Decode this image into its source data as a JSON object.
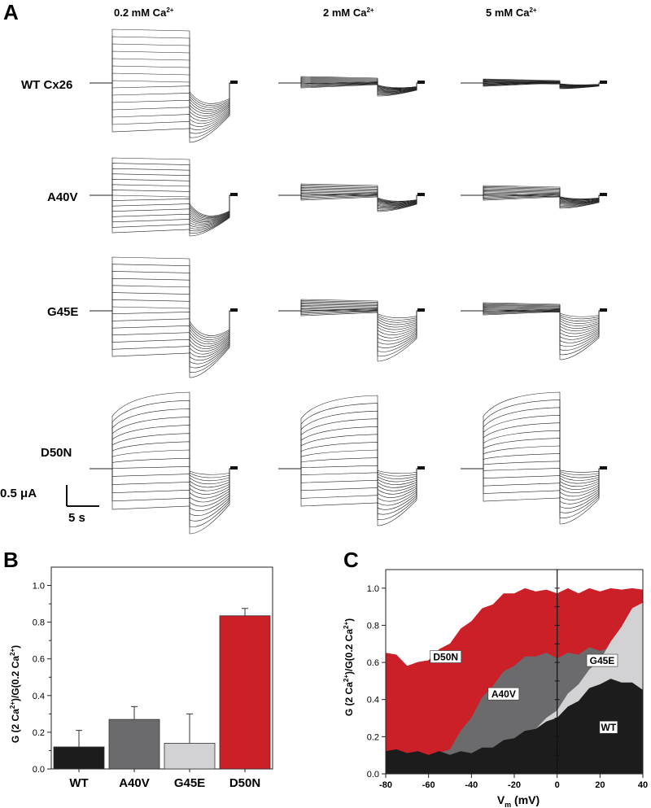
{
  "panels": {
    "a": "A",
    "b": "B",
    "c": "C"
  },
  "panel_a": {
    "conditions": [
      {
        "main": "0.2 mM Ca",
        "sup": "2+"
      },
      {
        "main": "2 mM Ca",
        "sup": "2+"
      },
      {
        "main": "5 mM Ca",
        "sup": "2+"
      }
    ],
    "rows": [
      "WT Cx26",
      "A40V",
      "G45E",
      "D50N"
    ],
    "scale_current": "0.5 μA",
    "scale_time": "5 s"
  },
  "colors": {
    "WT": "#1c1c1c",
    "A40V": "#6b6b6e",
    "G45E": "#d2d2d4",
    "D50N": "#cc2028"
  },
  "chart_data": [
    {
      "type": "bar",
      "panel": "B",
      "categories": [
        "WT",
        "A40V",
        "G45E",
        "D50N"
      ],
      "values": [
        0.12,
        0.27,
        0.14,
        0.835
      ],
      "errors": [
        0.09,
        0.07,
        0.16,
        0.04
      ],
      "ylabel_parts": [
        "G (2 Ca",
        "2+",
        ")/G(0.2 Ca",
        "2+",
        ")"
      ],
      "ylim": [
        0,
        1.0
      ],
      "yticks": [
        "0.0",
        "0.2",
        "0.4",
        "0.6",
        "0.8",
        "1.0"
      ]
    },
    {
      "type": "area",
      "panel": "C",
      "x": [
        -80,
        -75,
        -70,
        -65,
        -60,
        -55,
        -50,
        -45,
        -40,
        -35,
        -30,
        -25,
        -20,
        -15,
        -10,
        -5,
        0,
        5,
        10,
        15,
        20,
        25,
        30,
        35,
        40
      ],
      "series": [
        {
          "name": "D50N",
          "values": [
            0.66,
            0.63,
            0.59,
            0.59,
            0.62,
            0.66,
            0.71,
            0.77,
            0.83,
            0.88,
            0.92,
            0.96,
            0.98,
            0.99,
            0.99,
            0.98,
            0.98,
            0.99,
            0.98,
            0.99,
            0.99,
            1.0,
            1.0,
            1.0,
            1.0
          ]
        },
        {
          "name": "A40V",
          "values": [
            0.12,
            0.11,
            0.1,
            0.1,
            0.1,
            0.1,
            0.14,
            0.22,
            0.31,
            0.4,
            0.48,
            0.54,
            0.59,
            0.62,
            0.64,
            0.64,
            0.63,
            0.64,
            0.65,
            0.67,
            0.67,
            0.67,
            0.67,
            0.67,
            0.67
          ]
        },
        {
          "name": "G45E",
          "values": [
            0.12,
            0.11,
            0.1,
            0.1,
            0.1,
            0.1,
            0.1,
            0.11,
            0.12,
            0.13,
            0.15,
            0.17,
            0.19,
            0.22,
            0.25,
            0.29,
            0.35,
            0.42,
            0.49,
            0.55,
            0.62,
            0.7,
            0.8,
            0.88,
            0.93
          ]
        },
        {
          "name": "WT",
          "values": [
            0.13,
            0.12,
            0.12,
            0.11,
            0.11,
            0.11,
            0.11,
            0.11,
            0.12,
            0.13,
            0.15,
            0.17,
            0.2,
            0.22,
            0.25,
            0.27,
            0.31,
            0.35,
            0.4,
            0.45,
            0.49,
            0.5,
            0.5,
            0.48,
            0.46
          ]
        }
      ],
      "labels": [
        "D50N",
        "A40V",
        "G45E",
        "WT"
      ],
      "ylabel_parts": [
        "G (2 Ca",
        "2+",
        ")/G(0.2 Ca",
        "2+",
        ")"
      ],
      "xlabel_parts": [
        "V",
        "m",
        " (mV)"
      ],
      "xlim": [
        -80,
        40
      ],
      "ylim": [
        0,
        1.1
      ],
      "xticks": [
        "-80",
        "-60",
        "-40",
        "-20",
        "0",
        "20",
        "40"
      ],
      "yticks": [
        "0.0",
        "0.2",
        "0.4",
        "0.6",
        "0.8",
        "1.0"
      ]
    }
  ]
}
